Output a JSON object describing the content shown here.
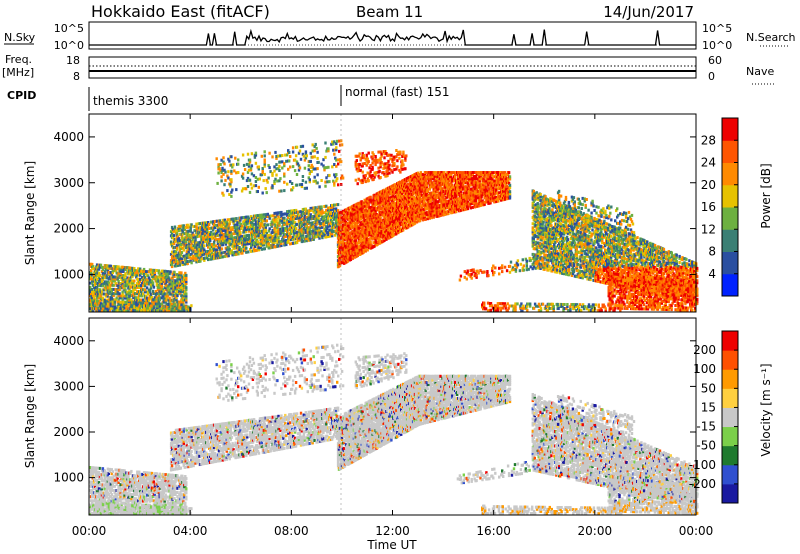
{
  "header": {
    "radar": "Hokkaido East (fitACF)",
    "beam": "Beam 11",
    "date": "14/Jun/2017"
  },
  "noise_panel": {
    "left_label": "N.Sky",
    "right_label": "N.Search",
    "left_ticks": [
      "10^5",
      "10^0"
    ],
    "right_ticks": [
      "10^5",
      "10^0"
    ]
  },
  "freq_panel": {
    "left_label_top": "Freq.",
    "left_label_unit": "[MHz]",
    "right_label": "Nave",
    "left_ticks": [
      "18",
      "8"
    ],
    "right_ticks": [
      "60",
      "0"
    ]
  },
  "cpid_panel": {
    "label": "CPID",
    "modes": [
      "themis 3300",
      "normal (fast) 151"
    ]
  },
  "time_axis": {
    "label": "Time UT",
    "ticks": [
      "00:00",
      "04:00",
      "08:00",
      "12:00",
      "16:00",
      "20:00",
      "00:00"
    ]
  },
  "chart_data": [
    {
      "type": "heatmap",
      "quantity": "Power",
      "x_range_hours": [
        0,
        24
      ],
      "ylabel": "Slant Range [km]",
      "ylim": [
        180,
        4500
      ],
      "yticks": [
        1000,
        2000,
        3000,
        4000
      ],
      "colorbar": {
        "label": "Power [dB]",
        "ticks": [
          "4",
          "8",
          "12",
          "16",
          "20",
          "24",
          "28"
        ],
        "colors": [
          "#0022ff",
          "#2a4fa0",
          "#3a7f74",
          "#6db040",
          "#e6c200",
          "#ff8a00",
          "#ff5500",
          "#ee0000"
        ]
      }
    },
    {
      "type": "heatmap",
      "quantity": "Velocity",
      "x_range_hours": [
        0,
        24
      ],
      "ylabel": "Slant Range [km]",
      "ylim": [
        180,
        4500
      ],
      "yticks": [
        1000,
        2000,
        3000,
        4000
      ],
      "colorbar": {
        "label": "Velocity [m s⁻¹]",
        "ticks": [
          "200",
          "100",
          "50",
          "15",
          "-15",
          "-50",
          "-100",
          "-200"
        ],
        "colors": [
          "#1a1aa0",
          "#3050d0",
          "#1f7a2e",
          "#7bd04a",
          "#c8c8c8",
          "#ffd040",
          "#ff9a00",
          "#ff5000",
          "#ee0000"
        ]
      }
    }
  ]
}
